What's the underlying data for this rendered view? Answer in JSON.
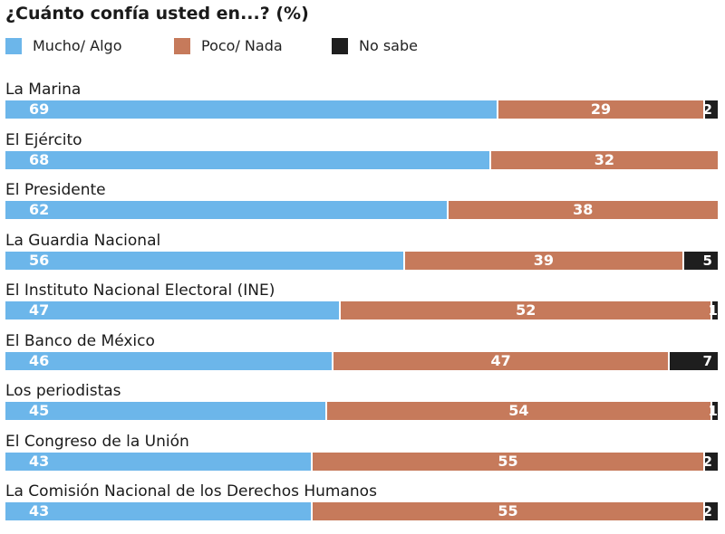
{
  "header": {
    "title": "¿Cuánto confía usted en...? (%)"
  },
  "chart_data": {
    "type": "bar",
    "orientation": "horizontal",
    "stacked": true,
    "title": "¿Cuánto confía usted en...? (%)",
    "xlim": [
      0,
      100
    ],
    "categories": [
      "La Marina",
      "El Ejército",
      "El Presidente",
      "La Guardia Nacional",
      "El Instituto Nacional Electoral (INE)",
      "El Banco de México",
      "Los periodistas",
      "El Congreso de la Unión",
      "La Comisión Nacional de los Derechos Humanos"
    ],
    "series": [
      {
        "name": "Mucho/ Algo",
        "color": "#6cb6ea",
        "values": [
          69,
          68,
          62,
          56,
          47,
          46,
          45,
          43,
          43
        ]
      },
      {
        "name": "Poco/ Nada",
        "color": "#c67a5b",
        "values": [
          29,
          32,
          38,
          39,
          52,
          47,
          54,
          55,
          55
        ]
      },
      {
        "name": "No sabe",
        "color": "#1e1e1e",
        "values": [
          2,
          0,
          0,
          5,
          1,
          7,
          1,
          2,
          2
        ]
      }
    ],
    "legend_position": "top-left",
    "grid": false
  }
}
